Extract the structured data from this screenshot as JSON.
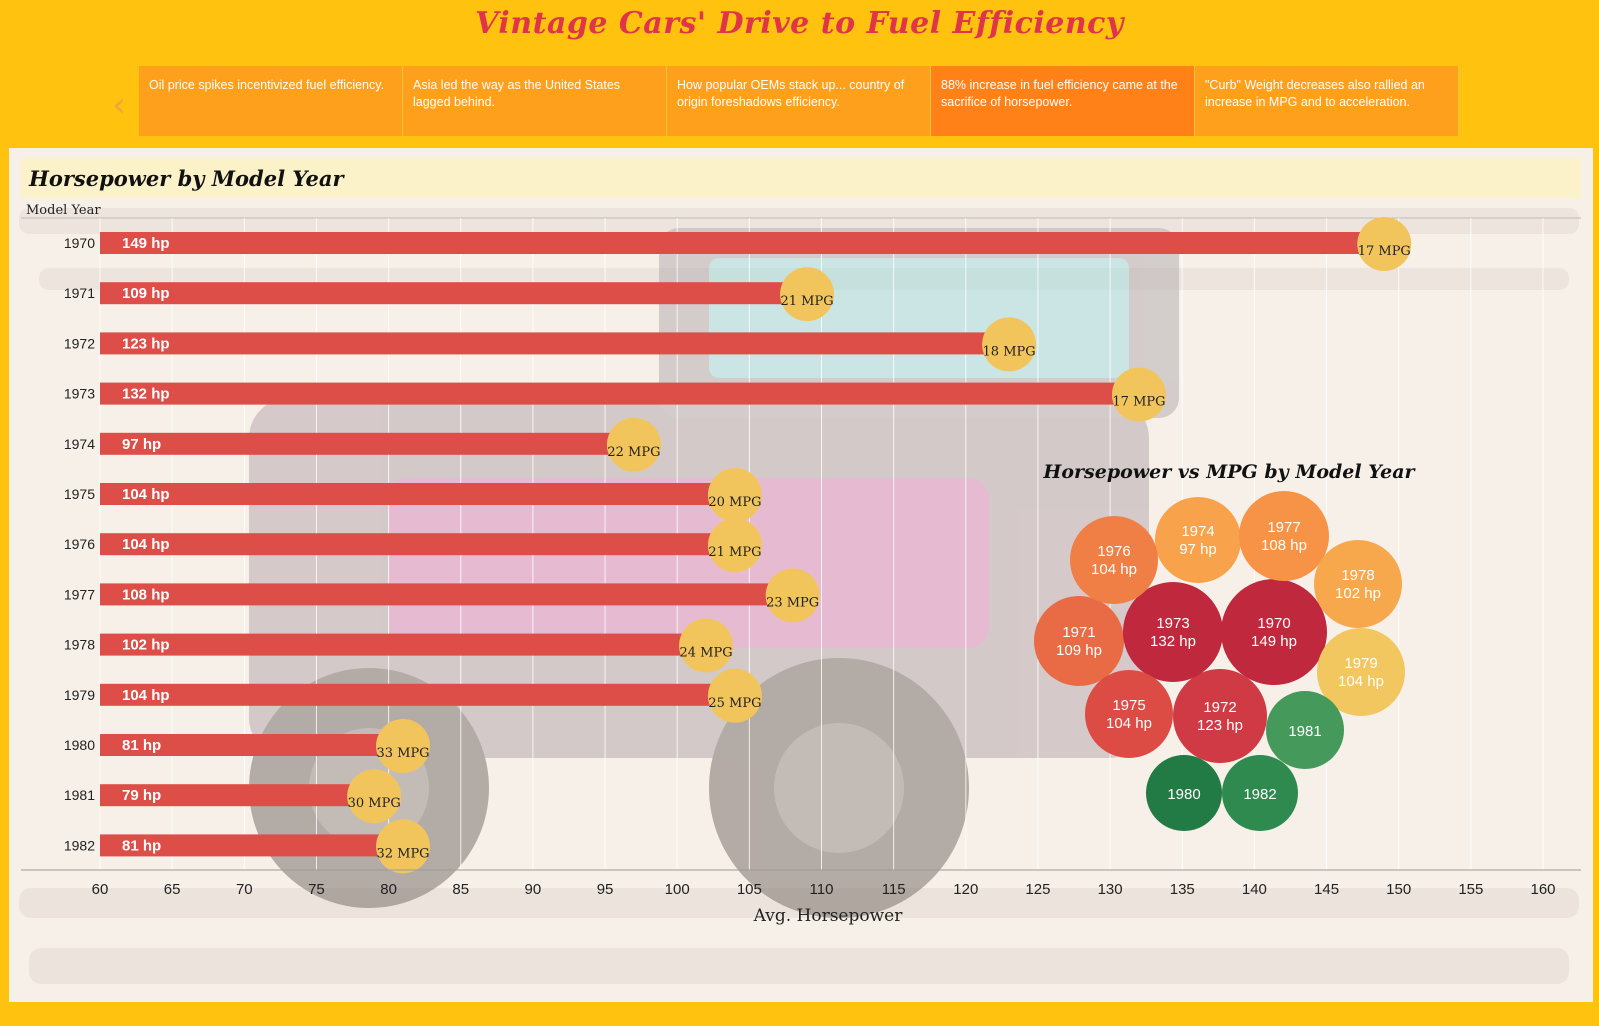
{
  "dashboard": {
    "title": "Vintage Cars' Drive to Fuel Efficiency"
  },
  "story_points": [
    {
      "label": "Oil price spikes incentivized fuel efficiency.",
      "active": false
    },
    {
      "label": "Asia led the way as the United States lagged behind.",
      "active": false
    },
    {
      "label": "How popular OEMs stack up... country of origin foreshadows efficiency.",
      "active": false
    },
    {
      "label": "88% increase in fuel efficiency came at the sacrifice of horsepower.",
      "active": true
    },
    {
      "label": "\"Curb\" Weight decreases also rallied an increase in MPG and to acceleration.",
      "active": false
    }
  ],
  "nav": {
    "prev_icon": "chevron-left-icon",
    "next_icon": "chevron-right-icon"
  },
  "colors": {
    "background": "#ffc20e",
    "bar": "#dc4e47",
    "mpg_circle": "#f2c55c",
    "title": "#e0344a"
  },
  "chart_data": [
    {
      "type": "bar",
      "title": "Horsepower by Model Year",
      "ylabel": "Model Year",
      "xlabel": "Avg. Horsepower",
      "xlim": [
        60,
        160
      ],
      "xticks": [
        60,
        65,
        70,
        75,
        80,
        85,
        90,
        95,
        100,
        105,
        110,
        115,
        120,
        125,
        130,
        135,
        140,
        145,
        150,
        155,
        160
      ],
      "grid": true,
      "categories": [
        "1970",
        "1971",
        "1972",
        "1973",
        "1974",
        "1975",
        "1976",
        "1977",
        "1978",
        "1979",
        "1980",
        "1981",
        "1982"
      ],
      "series": [
        {
          "name": "Avg. Horsepower",
          "values": [
            149,
            109,
            123,
            132,
            97,
            104,
            104,
            108,
            102,
            104,
            81,
            79,
            81
          ]
        },
        {
          "name": "MPG",
          "values": [
            17,
            21,
            18,
            17,
            22,
            20,
            21,
            23,
            24,
            25,
            33,
            30,
            32
          ]
        }
      ],
      "bar_labels": [
        "149 hp",
        "109 hp",
        "123 hp",
        "132 hp",
        "97 hp",
        "104 hp",
        "104 hp",
        "108 hp",
        "102 hp",
        "104 hp",
        "81 hp",
        "79 hp",
        "81 hp"
      ],
      "mpg_labels": [
        "17 MPG",
        "21 MPG",
        "18 MPG",
        "17 MPG",
        "22 MPG",
        "20 MPG",
        "21 MPG",
        "23 MPG",
        "24 MPG",
        "25 MPG",
        "33 MPG",
        "30 MPG",
        "32 MPG"
      ]
    },
    {
      "type": "bubble",
      "title": "Horsepower vs MPG by Model Year",
      "bubbles": [
        {
          "year": "1970",
          "hp_label": "149 hp",
          "hp": 149,
          "color": "#c0283d"
        },
        {
          "year": "1971",
          "hp_label": "109 hp",
          "hp": 109,
          "color": "#e96b45"
        },
        {
          "year": "1972",
          "hp_label": "123 hp",
          "hp": 123,
          "color": "#cf3a45"
        },
        {
          "year": "1973",
          "hp_label": "132 hp",
          "hp": 132,
          "color": "#c0283d"
        },
        {
          "year": "1974",
          "hp_label": "97 hp",
          "hp": 97,
          "color": "#f8a24b"
        },
        {
          "year": "1975",
          "hp_label": "104 hp",
          "hp": 104,
          "color": "#dc4c44"
        },
        {
          "year": "1976",
          "hp_label": "104 hp",
          "hp": 104,
          "color": "#f07f45"
        },
        {
          "year": "1977",
          "hp_label": "108 hp",
          "hp": 108,
          "color": "#f79346"
        },
        {
          "year": "1978",
          "hp_label": "102 hp",
          "hp": 102,
          "color": "#f7a84d"
        },
        {
          "year": "1979",
          "hp_label": "104 hp",
          "hp": 104,
          "color": "#f3c75f"
        },
        {
          "year": "1980",
          "hp_label": "",
          "hp": 81,
          "color": "#227a44"
        },
        {
          "year": "1981",
          "hp_label": "",
          "hp": 79,
          "color": "#45995a"
        },
        {
          "year": "1982",
          "hp_label": "",
          "hp": 81,
          "color": "#2f8a4f"
        }
      ]
    }
  ]
}
